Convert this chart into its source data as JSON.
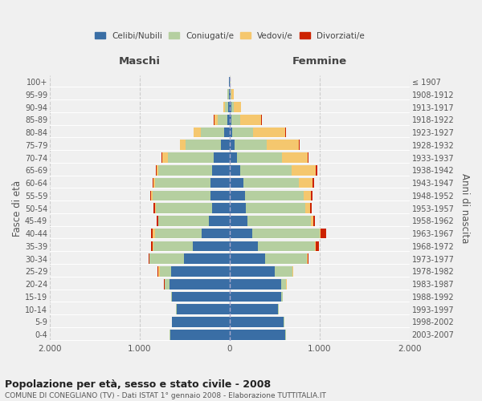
{
  "age_groups": [
    "0-4",
    "5-9",
    "10-14",
    "15-19",
    "20-24",
    "25-29",
    "30-34",
    "35-39",
    "40-44",
    "45-49",
    "50-54",
    "55-59",
    "60-64",
    "65-69",
    "70-74",
    "75-79",
    "80-84",
    "85-89",
    "90-94",
    "95-99",
    "100+"
  ],
  "birth_years": [
    "2003-2007",
    "1998-2002",
    "1993-1997",
    "1988-1992",
    "1983-1987",
    "1978-1982",
    "1973-1977",
    "1968-1972",
    "1963-1967",
    "1958-1962",
    "1953-1957",
    "1948-1952",
    "1943-1947",
    "1938-1942",
    "1933-1937",
    "1928-1932",
    "1923-1927",
    "1918-1922",
    "1913-1917",
    "1908-1912",
    "≤ 1907"
  ],
  "males": {
    "celibi": [
      660,
      640,
      590,
      640,
      670,
      650,
      510,
      410,
      310,
      230,
      200,
      215,
      210,
      200,
      180,
      100,
      60,
      30,
      20,
      10,
      5
    ],
    "coniugati": [
      5,
      5,
      5,
      15,
      50,
      130,
      380,
      440,
      520,
      560,
      620,
      640,
      620,
      590,
      510,
      390,
      260,
      100,
      35,
      15,
      2
    ],
    "vedovi": [
      0,
      0,
      0,
      0,
      5,
      15,
      5,
      10,
      30,
      5,
      10,
      15,
      15,
      25,
      60,
      60,
      80,
      40,
      15,
      5,
      0
    ],
    "divorziati": [
      0,
      0,
      0,
      0,
      2,
      5,
      10,
      10,
      10,
      15,
      15,
      15,
      15,
      10,
      8,
      5,
      5,
      5,
      2,
      0,
      0
    ]
  },
  "females": {
    "nubili": [
      620,
      600,
      540,
      570,
      570,
      500,
      390,
      310,
      250,
      200,
      180,
      170,
      150,
      120,
      80,
      50,
      30,
      20,
      15,
      10,
      5
    ],
    "coniugate": [
      5,
      5,
      5,
      20,
      60,
      200,
      470,
      640,
      750,
      700,
      660,
      650,
      620,
      570,
      500,
      360,
      230,
      100,
      30,
      10,
      2
    ],
    "vedove": [
      0,
      0,
      0,
      0,
      5,
      5,
      5,
      10,
      10,
      30,
      50,
      80,
      150,
      270,
      290,
      360,
      360,
      230,
      80,
      25,
      2
    ],
    "divorziate": [
      0,
      0,
      0,
      0,
      2,
      5,
      10,
      30,
      60,
      15,
      20,
      20,
      20,
      15,
      10,
      5,
      5,
      5,
      2,
      2,
      0
    ]
  },
  "colors": {
    "celibi": "#3a6ea5",
    "coniugati": "#b5cfa0",
    "vedovi": "#f5c76e",
    "divorziati": "#cc2200"
  },
  "xlim": 2000,
  "title": "Popolazione per età, sesso e stato civile - 2008",
  "subtitle": "COMUNE DI CONEGLIANO (TV) - Dati ISTAT 1° gennaio 2008 - Elaborazione TUTTITALIA.IT",
  "ylabel_left": "Fasce di età",
  "ylabel_right": "Anni di nascita",
  "xlabel_left": "Maschi",
  "xlabel_right": "Femmine",
  "background_color": "#f0f0f0",
  "grid_color": "#cccccc",
  "xtick_vals": [
    -2000,
    -1000,
    0,
    1000,
    2000
  ],
  "xtick_labels": [
    "2.000",
    "1.000",
    "0",
    "1.000",
    "2.000"
  ]
}
